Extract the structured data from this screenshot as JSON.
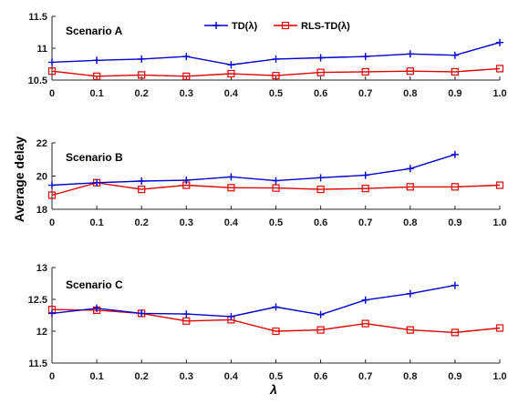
{
  "chart_data": {
    "type": "line",
    "ylabel": "Average delay",
    "xlabel": "λ",
    "legend": {
      "placement": "top-center",
      "entries": [
        {
          "name": "TD(λ)",
          "color": "#0000d0",
          "marker": "plus"
        },
        {
          "name": "RLS-TD(λ)",
          "color": "#e00000",
          "marker": "square"
        }
      ]
    },
    "x_ticks": [
      "0",
      "0.1",
      "0.2",
      "0.3",
      "0.4",
      "0.5",
      "0.6",
      "0.7",
      "0.8",
      "0.9",
      "1.0"
    ],
    "panels": [
      {
        "title": "Scenario A",
        "ylim": [
          10.5,
          11.5
        ],
        "yticks": [
          10.5,
          11,
          11.5
        ],
        "ytick_labels": [
          "10.5",
          "11",
          "11.5"
        ],
        "x": [
          0,
          0.1,
          0.2,
          0.3,
          0.4,
          0.5,
          0.6,
          0.7,
          0.8,
          0.9,
          1.0
        ],
        "series": [
          {
            "name": "TD(λ)",
            "values": [
              10.78,
              10.81,
              10.83,
              10.87,
              10.74,
              10.83,
              10.85,
              10.87,
              10.91,
              10.89,
              11.09
            ]
          },
          {
            "name": "RLS-TD(λ)",
            "values": [
              10.64,
              10.56,
              10.58,
              10.56,
              10.6,
              10.57,
              10.62,
              10.63,
              10.64,
              10.63,
              10.68
            ]
          }
        ]
      },
      {
        "title": "Scenario B",
        "ylim": [
          18,
          22
        ],
        "yticks": [
          18,
          20,
          22
        ],
        "ytick_labels": [
          "18",
          "20",
          "22"
        ],
        "x": [
          0,
          0.1,
          0.2,
          0.3,
          0.4,
          0.5,
          0.6,
          0.7,
          0.8,
          0.9,
          1.0
        ],
        "series": [
          {
            "name": "TD(λ)",
            "values": [
              19.45,
              19.6,
              19.7,
              19.75,
              19.95,
              19.72,
              19.9,
              20.05,
              20.45,
              21.3,
              null
            ]
          },
          {
            "name": "RLS-TD(λ)",
            "values": [
              18.85,
              19.6,
              19.2,
              19.45,
              19.3,
              19.28,
              19.2,
              19.25,
              19.35,
              19.35,
              19.45
            ]
          }
        ]
      },
      {
        "title": "Scenario C",
        "ylim": [
          11.5,
          13
        ],
        "yticks": [
          11.5,
          12,
          12.5,
          13
        ],
        "ytick_labels": [
          "11.5",
          "12",
          "12.5",
          "13"
        ],
        "x": [
          0,
          0.1,
          0.2,
          0.3,
          0.4,
          0.5,
          0.6,
          0.7,
          0.8,
          0.9,
          1.0
        ],
        "series": [
          {
            "name": "TD(λ)",
            "values": [
              12.28,
              12.36,
              12.28,
              12.27,
              12.23,
              12.38,
              12.26,
              12.49,
              12.59,
              12.72,
              null
            ]
          },
          {
            "name": "RLS-TD(λ)",
            "values": [
              12.34,
              12.33,
              12.28,
              12.16,
              12.18,
              12.0,
              12.02,
              12.12,
              12.02,
              11.98,
              12.05
            ]
          }
        ]
      }
    ]
  }
}
